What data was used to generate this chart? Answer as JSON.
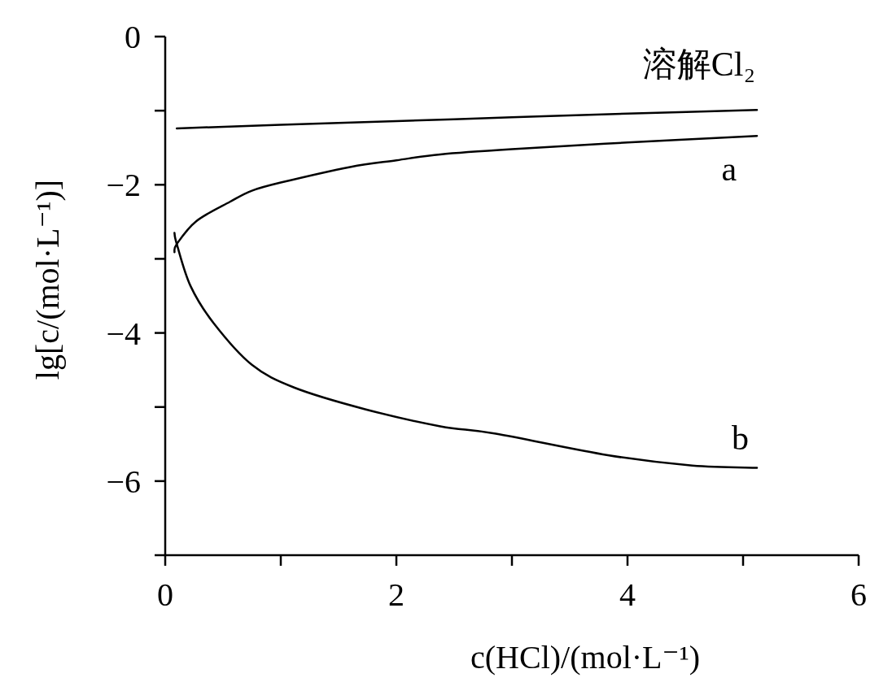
{
  "chart_data": {
    "type": "line",
    "xlabel": "c(HCl)/(mol·L⁻¹)",
    "ylabel": "lg[c/(mol·L⁻¹)]",
    "xlim": [
      0,
      6
    ],
    "ylim": [
      -7,
      0
    ],
    "xticks": [
      0,
      {
        "value": 1,
        "label": null
      },
      2,
      {
        "value": 3,
        "label": null
      },
      4,
      {
        "value": 5,
        "label": null
      },
      6
    ],
    "yticks": [
      0,
      {
        "value": -1,
        "label": null
      },
      {
        "value": -2,
        "label": "−2"
      },
      {
        "value": -3,
        "label": null
      },
      {
        "value": -4,
        "label": "−4"
      },
      {
        "value": -5,
        "label": null
      },
      {
        "value": -6,
        "label": "−6"
      },
      {
        "value": -7,
        "label": null
      }
    ],
    "grid": false,
    "marker": "none",
    "line_style": "solid",
    "series": [
      {
        "name": "溶解Cl₂",
        "color": "#000000",
        "x": [
          0.1,
          1.0,
          2.0,
          3.0,
          4.0,
          5.12
        ],
        "values": [
          -1.24,
          -1.19,
          -1.14,
          -1.09,
          -1.04,
          -0.99
        ]
      },
      {
        "name": "a",
        "color": "#000000",
        "x": [
          0.08,
          0.1,
          0.27,
          0.56,
          0.75,
          1.0,
          1.6,
          2.0,
          2.38,
          3.0,
          4.0,
          5.12
        ],
        "values": [
          -2.91,
          -2.8,
          -2.49,
          -2.23,
          -2.08,
          -1.97,
          -1.76,
          -1.67,
          -1.59,
          -1.52,
          -1.43,
          -1.34
        ]
      },
      {
        "name": "b",
        "color": "#000000",
        "x": [
          0.08,
          0.1,
          0.22,
          0.42,
          0.75,
          1.12,
          1.73,
          2.38,
          2.86,
          3.83,
          4.56,
          5.12
        ],
        "values": [
          -2.65,
          -2.8,
          -3.37,
          -3.87,
          -4.43,
          -4.74,
          -5.03,
          -5.26,
          -5.36,
          -5.65,
          -5.79,
          -5.82
        ]
      }
    ]
  }
}
